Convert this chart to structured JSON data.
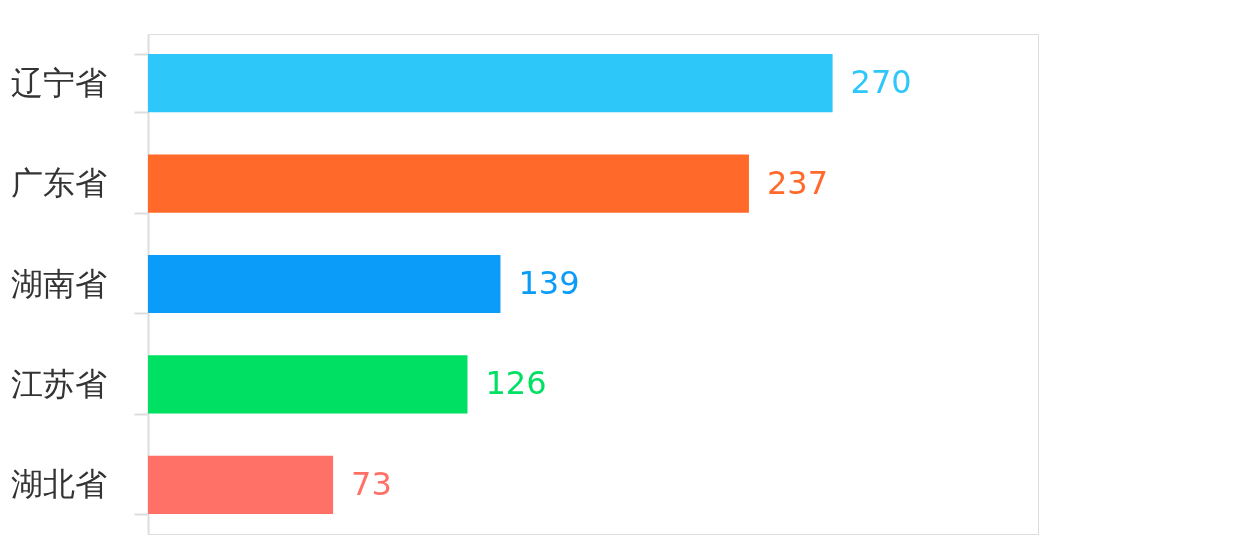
{
  "chart_data": {
    "type": "bar",
    "orientation": "horizontal",
    "categories": [
      "辽宁省",
      "广东省",
      "湖南省",
      "江苏省",
      "湖北省"
    ],
    "values": [
      270,
      237,
      139,
      126,
      73
    ],
    "colors": [
      "#2ec7fa",
      "#ff6a2a",
      "#0a9cf8",
      "#00e063",
      "#ff7166"
    ],
    "data_labels": true,
    "grid": false,
    "legend": false
  }
}
